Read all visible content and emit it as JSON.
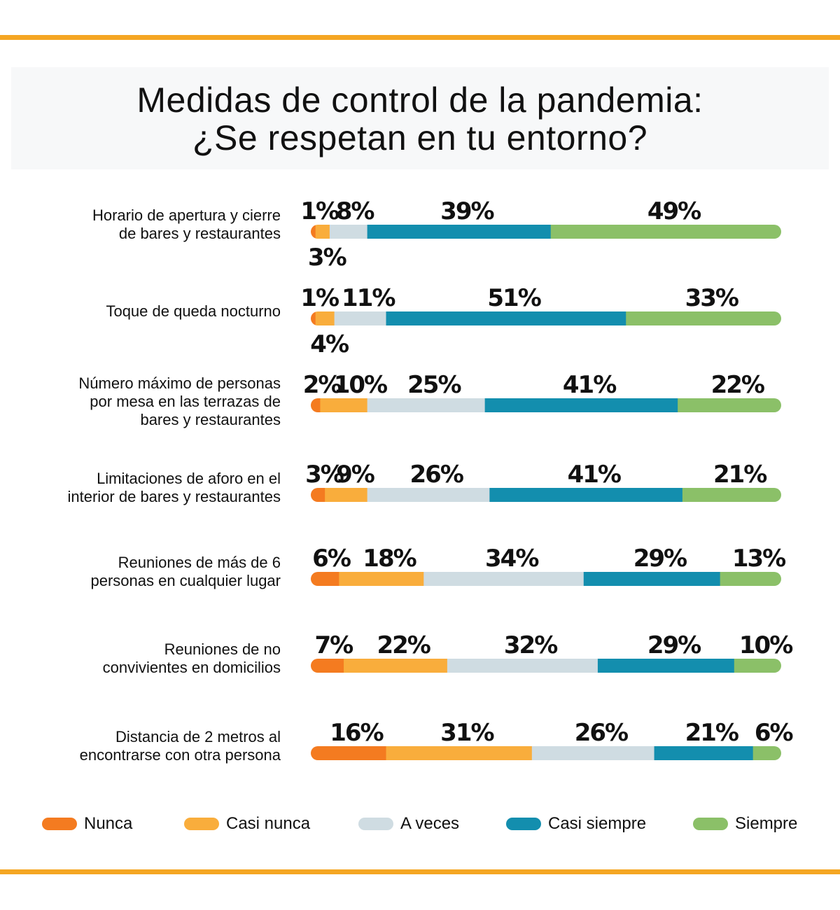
{
  "chart_data": {
    "type": "bar",
    "orientation": "horizontal",
    "stacked": true,
    "title": "Medidas de control de la pandemia:\n¿Se respetan en tu entorno?",
    "title_lines": [
      "Medidas de control de la pandemia:",
      "¿Se respetan en tu entorno?"
    ],
    "categories": [
      [
        "Horario de apertura y cierre",
        "de bares y restaurantes"
      ],
      [
        "Toque de queda nocturno"
      ],
      [
        "Número máximo de personas",
        "por mesa en las terrazas de",
        "bares y restaurantes"
      ],
      [
        "Limitaciones de aforo en el",
        "interior de bares y restaurantes"
      ],
      [
        "Reuniones de más de 6",
        "personas en cualquier lugar"
      ],
      [
        "Reuniones de no",
        "convivientes en domicilios"
      ],
      [
        "Distancia de 2 metros al",
        "encontrarse con otra persona"
      ]
    ],
    "series": [
      {
        "name": "Nunca",
        "color": "#f47b20",
        "values": [
          1,
          1,
          2,
          3,
          6,
          7,
          16
        ]
      },
      {
        "name": "Casi nunca",
        "color": "#f9ad3c",
        "values": [
          3,
          4,
          10,
          9,
          18,
          22,
          31
        ]
      },
      {
        "name": "A veces",
        "color": "#cfdce2",
        "values": [
          8,
          11,
          25,
          26,
          34,
          32,
          26
        ]
      },
      {
        "name": "Casi siempre",
        "color": "#138eae",
        "values": [
          39,
          51,
          41,
          41,
          29,
          29,
          21
        ]
      },
      {
        "name": "Siempre",
        "color": "#8bc068",
        "values": [
          49,
          33,
          22,
          21,
          13,
          10,
          6
        ]
      }
    ],
    "value_suffix": "%",
    "legend_position": "bottom",
    "grid": false
  },
  "accent_color": "#f5a623"
}
